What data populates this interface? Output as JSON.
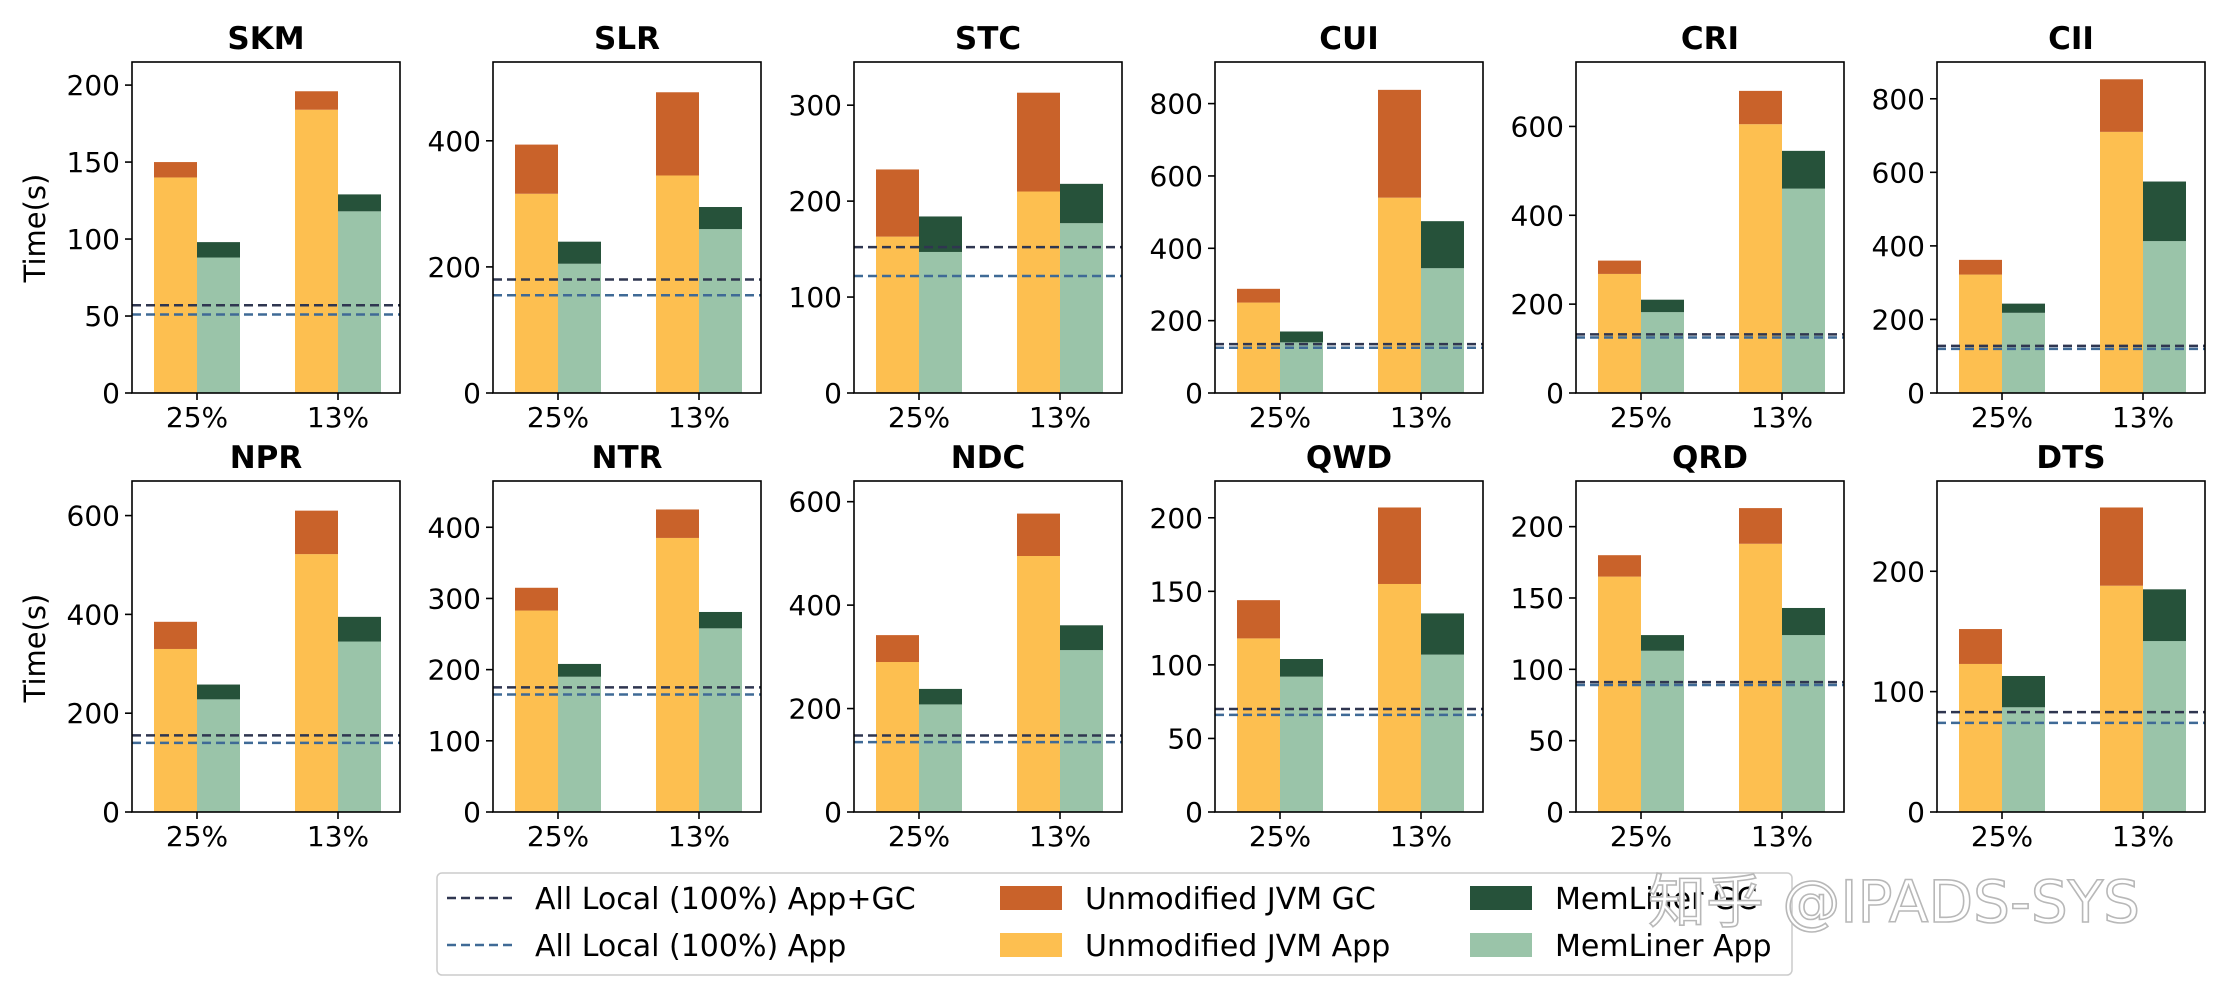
{
  "chart_data": {
    "type": "bar",
    "stacked": true,
    "ylabel": "Time(s)",
    "categories": [
      "25%",
      "13%"
    ],
    "legend": {
      "placement": "bottom-center",
      "entries": [
        {
          "key": "local_total",
          "label": "All Local (100%) App+GC",
          "kind": "dashed-line"
        },
        {
          "key": "local_app",
          "label": "All Local (100%) App",
          "kind": "dashed-line"
        },
        {
          "key": "jvm_gc",
          "label": "Unmodified JVM GC",
          "kind": "patch"
        },
        {
          "key": "jvm_app",
          "label": "Unmodified JVM App",
          "kind": "patch"
        },
        {
          "key": "ml_gc",
          "label": "MemLiner GC",
          "kind": "patch"
        },
        {
          "key": "ml_app",
          "label": "MemLiner App",
          "kind": "patch"
        }
      ]
    },
    "colors": {
      "jvm_app": "#fdbf50",
      "jvm_gc": "#c9622a",
      "ml_app": "#9ac4a9",
      "ml_gc": "#26523a",
      "local_total": "#2f3650",
      "local_app": "#3f6a96"
    },
    "panels": [
      {
        "title": "SKM",
        "ylim": [
          0,
          215
        ],
        "yticks": [
          0,
          50,
          100,
          150,
          200
        ],
        "local_total": 57,
        "local_app": 51,
        "jvm_app": [
          140,
          184
        ],
        "jvm_gc": [
          10,
          12
        ],
        "ml_app": [
          88,
          118
        ],
        "ml_gc": [
          10,
          11
        ]
      },
      {
        "title": "SLR",
        "ylim": [
          0,
          525
        ],
        "yticks": [
          0,
          200,
          400
        ],
        "local_total": 180,
        "local_app": 155,
        "jvm_app": [
          316,
          345
        ],
        "jvm_gc": [
          78,
          132
        ],
        "ml_app": [
          205,
          260
        ],
        "ml_gc": [
          35,
          35
        ]
      },
      {
        "title": "STC",
        "ylim": [
          0,
          345
        ],
        "yticks": [
          0,
          100,
          200,
          300
        ],
        "local_total": 152,
        "local_app": 122,
        "jvm_app": [
          163,
          210
        ],
        "jvm_gc": [
          70,
          103
        ],
        "ml_app": [
          147,
          177
        ],
        "ml_gc": [
          37,
          41
        ]
      },
      {
        "title": "CUI",
        "ylim": [
          0,
          915
        ],
        "yticks": [
          0,
          200,
          400,
          600,
          800
        ],
        "local_total": 135,
        "local_app": 125,
        "jvm_app": [
          250,
          540
        ],
        "jvm_gc": [
          38,
          298
        ],
        "ml_app": [
          140,
          345
        ],
        "ml_gc": [
          30,
          130
        ]
      },
      {
        "title": "CRI",
        "ylim": [
          0,
          745
        ],
        "yticks": [
          0,
          200,
          400,
          600
        ],
        "local_total": 132,
        "local_app": 125,
        "jvm_app": [
          268,
          605
        ],
        "jvm_gc": [
          30,
          75
        ],
        "ml_app": [
          182,
          460
        ],
        "ml_gc": [
          28,
          85
        ]
      },
      {
        "title": "CII",
        "ylim": [
          0,
          900
        ],
        "yticks": [
          0,
          200,
          400,
          600,
          800
        ],
        "local_total": 128,
        "local_app": 120,
        "jvm_app": [
          322,
          710
        ],
        "jvm_gc": [
          40,
          143
        ],
        "ml_app": [
          218,
          413
        ],
        "ml_gc": [
          25,
          162
        ]
      },
      {
        "title": "NPR",
        "ylim": [
          0,
          670
        ],
        "yticks": [
          0,
          200,
          400,
          600
        ],
        "local_total": 155,
        "local_app": 140,
        "jvm_app": [
          330,
          522
        ],
        "jvm_gc": [
          55,
          88
        ],
        "ml_app": [
          228,
          345
        ],
        "ml_gc": [
          30,
          50
        ]
      },
      {
        "title": "NTR",
        "ylim": [
          0,
          465
        ],
        "yticks": [
          0,
          100,
          200,
          300,
          400
        ],
        "local_total": 175,
        "local_app": 165,
        "jvm_app": [
          283,
          385
        ],
        "jvm_gc": [
          32,
          40
        ],
        "ml_app": [
          190,
          258
        ],
        "ml_gc": [
          18,
          23
        ]
      },
      {
        "title": "NDC",
        "ylim": [
          0,
          640
        ],
        "yticks": [
          0,
          200,
          400,
          600
        ],
        "local_total": 148,
        "local_app": 135,
        "jvm_app": [
          290,
          495
        ],
        "jvm_gc": [
          52,
          82
        ],
        "ml_app": [
          208,
          313
        ],
        "ml_gc": [
          30,
          48
        ]
      },
      {
        "title": "QWD",
        "ylim": [
          0,
          225
        ],
        "yticks": [
          0,
          50,
          100,
          150,
          200
        ],
        "local_total": 70,
        "local_app": 66,
        "jvm_app": [
          118,
          155
        ],
        "jvm_gc": [
          26,
          52
        ],
        "ml_app": [
          92,
          107
        ],
        "ml_gc": [
          12,
          28
        ]
      },
      {
        "title": "QRD",
        "ylim": [
          0,
          232
        ],
        "yticks": [
          0,
          50,
          100,
          150,
          200
        ],
        "local_total": 91,
        "local_app": 89,
        "jvm_app": [
          165,
          188
        ],
        "jvm_gc": [
          15,
          25
        ],
        "ml_app": [
          113,
          124
        ],
        "ml_gc": [
          11,
          19
        ]
      },
      {
        "title": "DTS",
        "ylim": [
          0,
          275
        ],
        "yticks": [
          0,
          100,
          200
        ],
        "local_total": 83,
        "local_app": 74,
        "jvm_app": [
          123,
          188
        ],
        "jvm_gc": [
          29,
          65
        ],
        "ml_app": [
          87,
          142
        ],
        "ml_gc": [
          26,
          43
        ]
      }
    ]
  },
  "watermark": "知乎 @IPADS-SYS"
}
